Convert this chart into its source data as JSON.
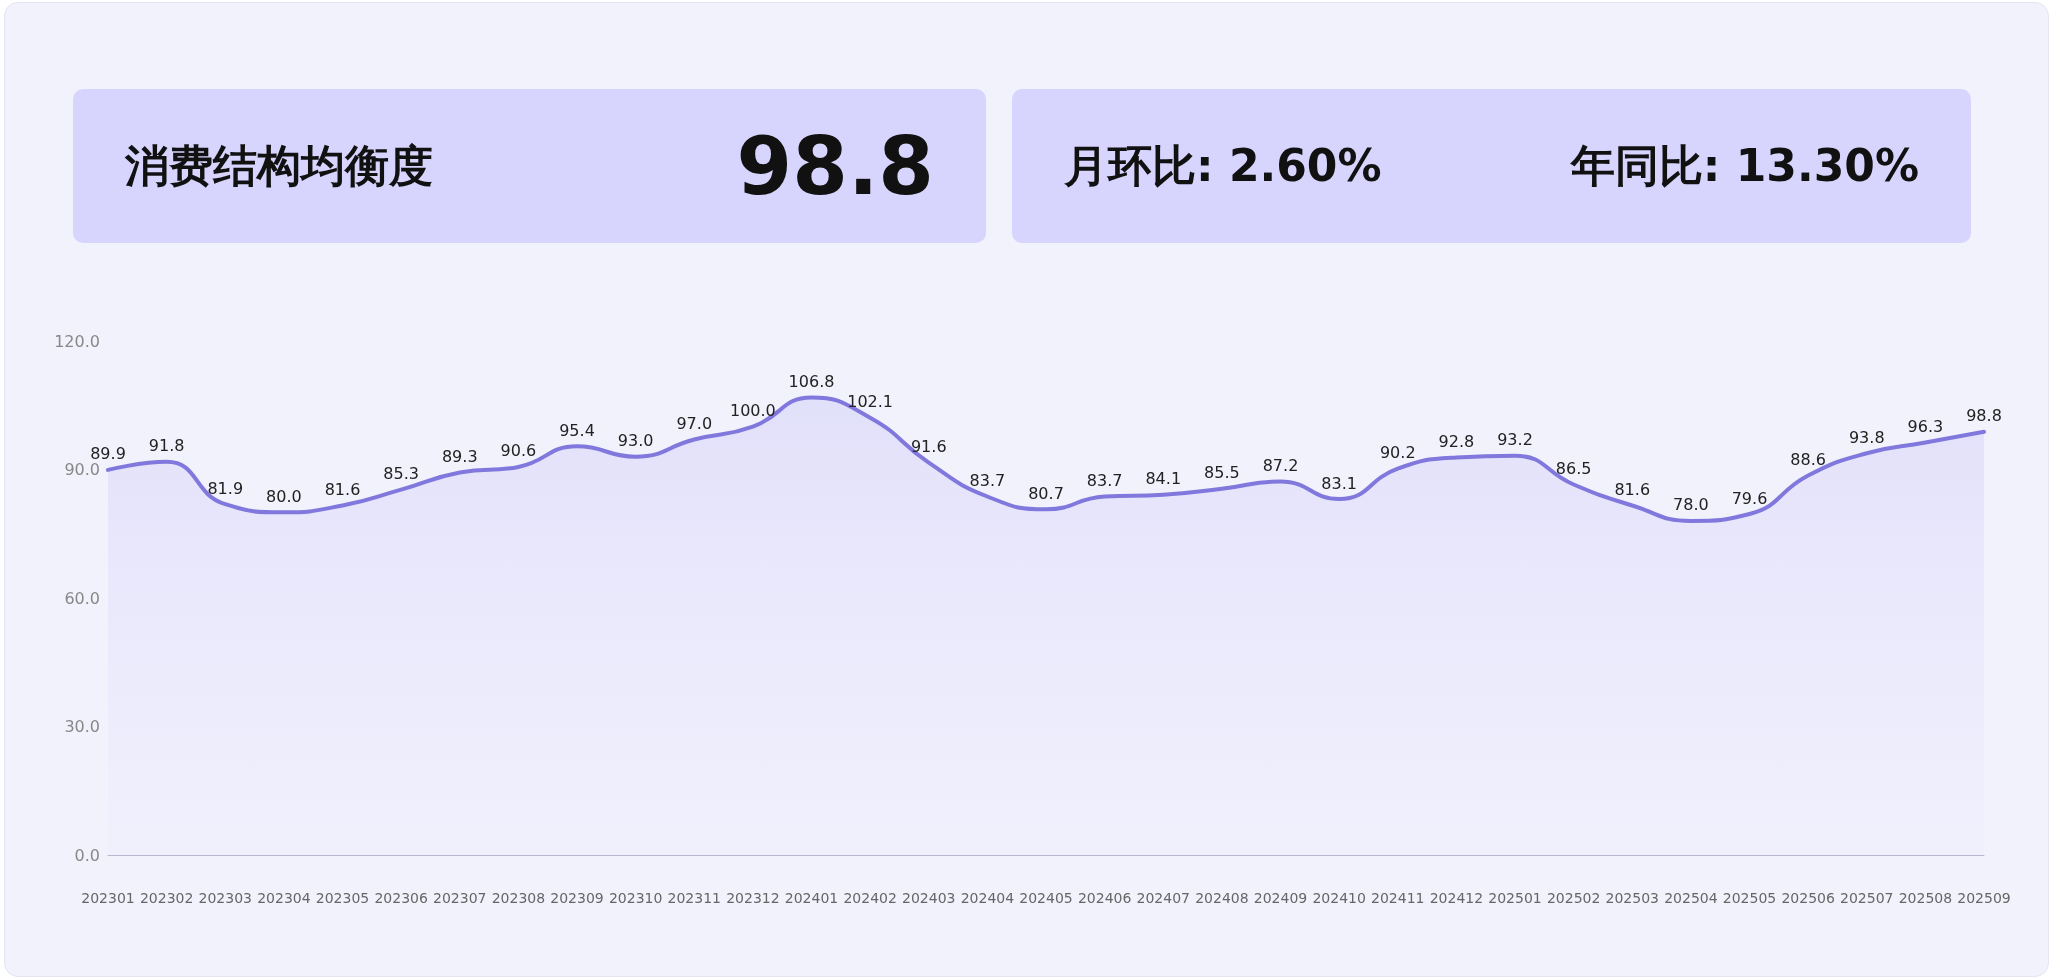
{
  "chart_data": [
    {
      "type": "other",
      "title": "消费结构均衡度",
      "annotations": [
        "98.8"
      ]
    },
    {
      "type": "other",
      "annotations": [
        "月环比: 2.60%",
        "年同比: 13.30%"
      ]
    },
    {
      "type": "area",
      "categories": [
        "202301",
        "202302",
        "202303",
        "202304",
        "202305",
        "202306",
        "202307",
        "202308",
        "202309",
        "202310",
        "202311",
        "202312",
        "202401",
        "202402",
        "202403",
        "202404",
        "202405",
        "202406",
        "202407",
        "202408",
        "202409",
        "202410",
        "202411",
        "202412",
        "202501",
        "202502",
        "202503",
        "202504",
        "202505",
        "202506",
        "202507",
        "202508",
        "202509"
      ],
      "values": [
        89.9,
        91.8,
        81.9,
        80.0,
        81.6,
        85.3,
        89.3,
        90.6,
        95.4,
        93.0,
        97.0,
        100.0,
        106.8,
        102.1,
        91.6,
        83.7,
        80.7,
        83.7,
        84.1,
        85.5,
        87.2,
        83.1,
        90.2,
        92.8,
        93.2,
        86.5,
        81.6,
        78.0,
        79.6,
        88.6,
        93.8,
        96.3,
        98.8
      ],
      "value_labels": [
        "89.9",
        "91.8",
        "81.9",
        "80.0",
        "81.6",
        "85.3",
        "89.3",
        "90.6",
        "95.4",
        "93.0",
        "97.0",
        "100.0",
        "106.8",
        "102.1",
        "91.6",
        "83.7",
        "80.7",
        "83.7",
        "84.1",
        "85.5",
        "87.2",
        "83.1",
        "90.2",
        "92.8",
        "93.2",
        "86.5",
        "81.6",
        "78.0",
        "79.6",
        "88.6",
        "93.8",
        "96.3",
        "98.8"
      ],
      "color": "#8078dc",
      "ylim": [
        0,
        120
      ],
      "yticks": [
        {
          "value": 0,
          "label": "0.0"
        },
        {
          "value": 30,
          "label": "30.0"
        },
        {
          "value": 60,
          "label": "60.0"
        },
        {
          "value": 90,
          "label": "90.0"
        },
        {
          "value": 120,
          "label": "120.0"
        }
      ],
      "grid": false,
      "marker": "none",
      "line_style": "solid"
    }
  ]
}
